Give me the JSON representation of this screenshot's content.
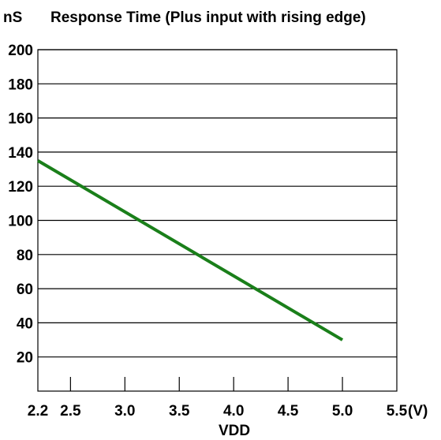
{
  "chart_data": {
    "type": "line",
    "title": "Response Time (Plus input with rising edge)",
    "y_unit": "nS",
    "xlabel": "VDD",
    "x_unit": "(V)",
    "xlim": [
      2.2,
      5.5
    ],
    "ylim": [
      0,
      200
    ],
    "x_ticks": [
      2.2,
      2.5,
      3.0,
      3.5,
      4.0,
      4.5,
      5.0,
      5.5
    ],
    "x_tick_labels": [
      "2.2",
      "2.5",
      "3.0",
      "3.5",
      "4.0",
      "4.5",
      "5.0",
      "5.5"
    ],
    "y_ticks": [
      20,
      40,
      60,
      80,
      100,
      120,
      140,
      160,
      180,
      200
    ],
    "y_tick_labels": [
      "20",
      "40",
      "60",
      "80",
      "100",
      "120",
      "140",
      "160",
      "180",
      "200"
    ],
    "grid": "horizontal",
    "series": [
      {
        "x": [
          2.2,
          5.0
        ],
        "y": [
          135,
          30
        ],
        "color": "#1a7f1a"
      }
    ]
  }
}
